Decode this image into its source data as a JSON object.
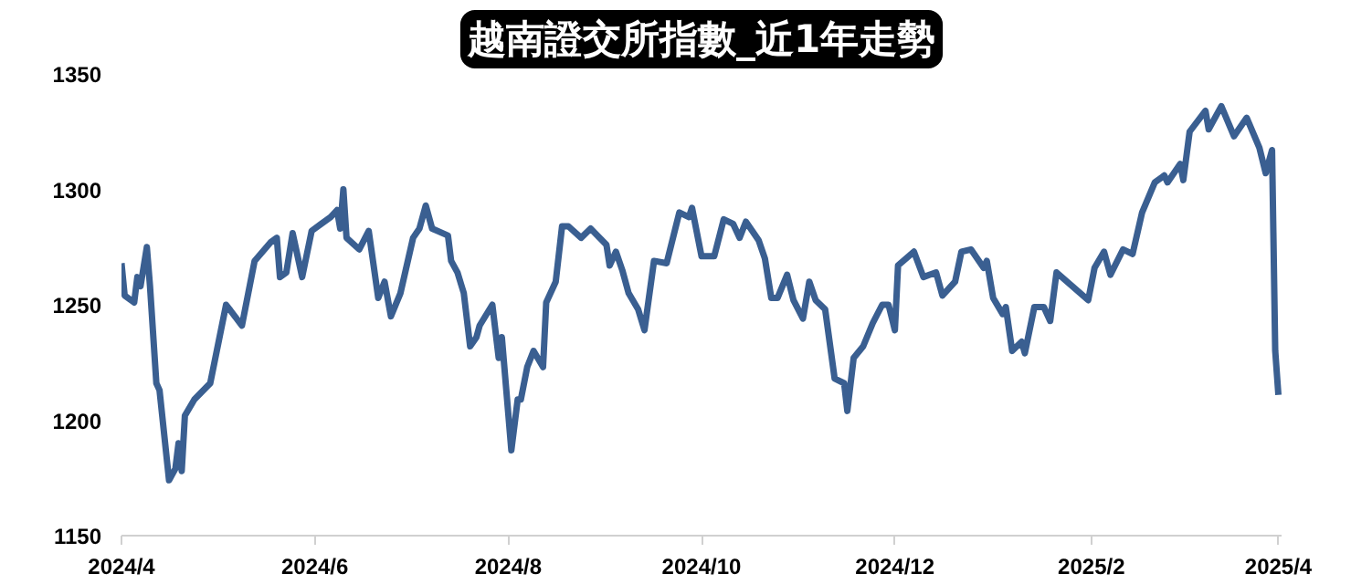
{
  "chart_data": {
    "type": "line",
    "title": "越南證交所指數_近1年走勢",
    "x": [
      "2024-04-01",
      "2024-04-02",
      "2024-04-05",
      "2024-04-06",
      "2024-04-07",
      "2024-04-09",
      "2024-04-10",
      "2024-04-12",
      "2024-04-13",
      "2024-04-16",
      "2024-04-18",
      "2024-04-19",
      "2024-04-20",
      "2024-04-21",
      "2024-04-24",
      "2024-04-29",
      "2024-05-04",
      "2024-05-09",
      "2024-05-13",
      "2024-05-18",
      "2024-05-20",
      "2024-05-21",
      "2024-05-23",
      "2024-05-25",
      "2024-05-28",
      "2024-05-31",
      "2024-06-03",
      "2024-06-06",
      "2024-06-08",
      "2024-06-09",
      "2024-06-10",
      "2024-06-11",
      "2024-06-15",
      "2024-06-18",
      "2024-06-21",
      "2024-06-23",
      "2024-06-25",
      "2024-06-28",
      "2024-07-02",
      "2024-07-04",
      "2024-07-06",
      "2024-07-08",
      "2024-07-13",
      "2024-07-14",
      "2024-07-16",
      "2024-07-18",
      "2024-07-20",
      "2024-07-22",
      "2024-07-23",
      "2024-07-27",
      "2024-07-29",
      "2024-07-30",
      "2024-08-02",
      "2024-08-04",
      "2024-08-05",
      "2024-08-07",
      "2024-08-09",
      "2024-08-12",
      "2024-08-13",
      "2024-08-16",
      "2024-08-18",
      "2024-08-20",
      "2024-08-24",
      "2024-08-27",
      "2024-09-01",
      "2024-09-02",
      "2024-09-04",
      "2024-09-06",
      "2024-09-08",
      "2024-09-11",
      "2024-09-13",
      "2024-09-16",
      "2024-09-20",
      "2024-09-24",
      "2024-09-27",
      "2024-09-28",
      "2024-10-01",
      "2024-10-05",
      "2024-10-08",
      "2024-10-11",
      "2024-10-13",
      "2024-10-15",
      "2024-10-19",
      "2024-10-21",
      "2024-10-23",
      "2024-10-25",
      "2024-10-28",
      "2024-10-30",
      "2024-11-02",
      "2024-11-04",
      "2024-11-06",
      "2024-11-09",
      "2024-11-12",
      "2024-11-15",
      "2024-11-16",
      "2024-11-18",
      "2024-11-21",
      "2024-11-24",
      "2024-11-27",
      "2024-11-29",
      "2024-12-01",
      "2024-12-02",
      "2024-12-07",
      "2024-12-10",
      "2024-12-14",
      "2024-12-16",
      "2024-12-20",
      "2024-12-22",
      "2024-12-25",
      "2024-12-29",
      "2024-12-30",
      "2025-01-01",
      "2025-01-04",
      "2025-01-05",
      "2025-01-07",
      "2025-01-10",
      "2025-01-11",
      "2025-01-14",
      "2025-01-17",
      "2025-01-19",
      "2025-01-21",
      "2025-01-31",
      "2025-02-02",
      "2025-02-05",
      "2025-02-07",
      "2025-02-11",
      "2025-02-14",
      "2025-02-17",
      "2025-02-21",
      "2025-02-24",
      "2025-02-25",
      "2025-03-01",
      "2025-03-02",
      "2025-03-04",
      "2025-03-09",
      "2025-03-10",
      "2025-03-14",
      "2025-03-18",
      "2025-03-22",
      "2025-03-26",
      "2025-03-28",
      "2025-03-30",
      "2025-03-31",
      "2025-04-01"
    ],
    "series": [
      {
        "color": "#3a5f91",
        "values": [
          1268,
          1254,
          1251,
          1262,
          1258,
          1275,
          1258,
          1216,
          1213,
          1174,
          1179,
          1190,
          1178,
          1202,
          1209,
          1216,
          1250,
          1241,
          1269,
          1277,
          1279,
          1262,
          1264,
          1281,
          1262,
          1282,
          1285,
          1288,
          1291,
          1283,
          1300,
          1279,
          1274,
          1282,
          1253,
          1260,
          1245,
          1255,
          1279,
          1283,
          1293,
          1283,
          1280,
          1269,
          1264,
          1255,
          1232,
          1236,
          1241,
          1250,
          1227,
          1236,
          1187,
          1209,
          1209,
          1223,
          1230,
          1223,
          1251,
          1260,
          1284,
          1284,
          1279,
          1283,
          1276,
          1267,
          1273,
          1265,
          1255,
          1248,
          1239,
          1269,
          1268,
          1290,
          1288,
          1292,
          1271,
          1271,
          1287,
          1285,
          1279,
          1286,
          1278,
          1270,
          1253,
          1253,
          1263,
          1252,
          1244,
          1260,
          1252,
          1248,
          1218,
          1216,
          1204,
          1227,
          1232,
          1242,
          1250,
          1250,
          1239,
          1267,
          1273,
          1262,
          1264,
          1254,
          1260,
          1273,
          1274,
          1266,
          1269,
          1253,
          1246,
          1249,
          1230,
          1234,
          1229,
          1249,
          1249,
          1243,
          1264,
          1252,
          1266,
          1273,
          1263,
          1274,
          1272,
          1290,
          1303,
          1306,
          1303,
          1311,
          1304,
          1325,
          1334,
          1326,
          1336,
          1323,
          1331,
          1318,
          1307,
          1317,
          1230,
          1211
        ]
      }
    ],
    "xlim": [
      "2024-04-01",
      "2025-04-02"
    ],
    "xticks": [
      {
        "value": "2024-04-01",
        "label": "2024/4"
      },
      {
        "value": "2024-06-01",
        "label": "2024/6"
      },
      {
        "value": "2024-08-01",
        "label": "2024/8"
      },
      {
        "value": "2024-10-01",
        "label": "2024/10"
      },
      {
        "value": "2024-12-01",
        "label": "2024/12"
      },
      {
        "value": "2025-02-01",
        "label": "2025/2"
      },
      {
        "value": "2025-04-01",
        "label": "2025/4"
      }
    ],
    "ylim": [
      1150,
      1350
    ],
    "yticks": [
      1150,
      1200,
      1250,
      1300,
      1350
    ],
    "grid": false,
    "marker": "none",
    "line_style": "solid"
  }
}
